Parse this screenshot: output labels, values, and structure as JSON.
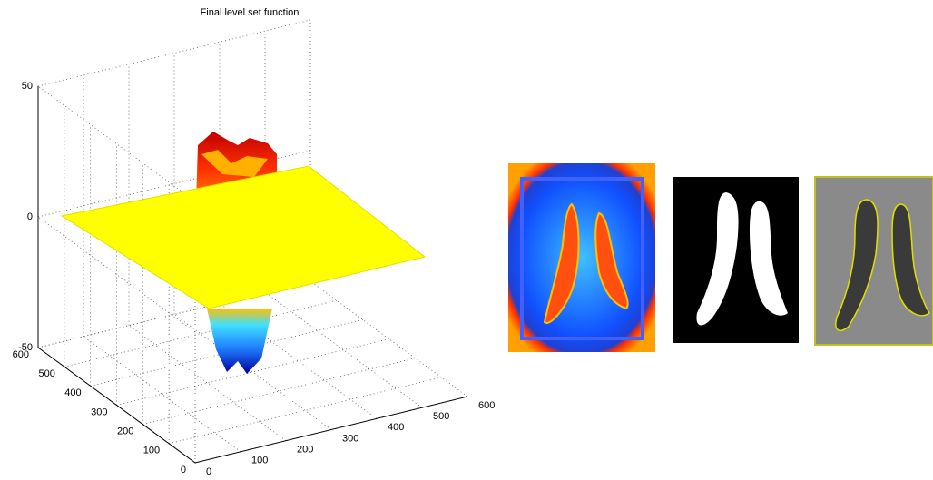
{
  "chart_data": {
    "type": "surface",
    "title": "Final level set function",
    "xlim": [
      0,
      600
    ],
    "xticks": [
      0,
      100,
      200,
      300,
      400,
      500,
      600
    ],
    "ylim": [
      0,
      600
    ],
    "yticks": [
      0,
      100,
      200,
      300,
      400,
      500,
      600
    ],
    "zlim": [
      -50,
      50
    ],
    "zticks": [
      -50,
      0,
      50
    ],
    "grid": true
  }
}
